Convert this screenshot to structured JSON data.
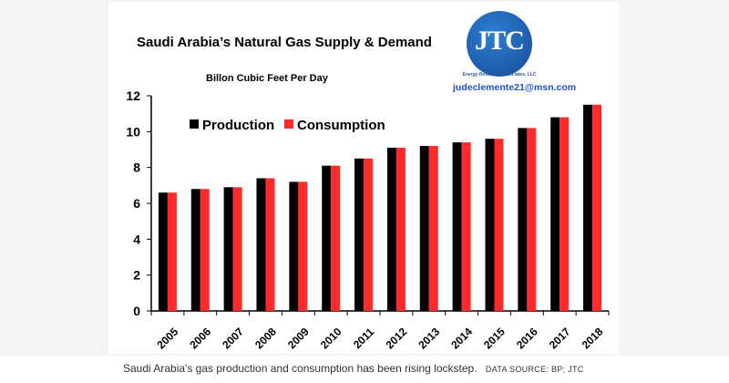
{
  "chart_data": {
    "type": "bar",
    "title": "Saudi Arabia’s Natural Gas Supply & Demand",
    "subtitle": "Billon Cubic Feet Per Day",
    "xlabel": "",
    "ylabel": "",
    "ylim": [
      0,
      12
    ],
    "yticks": [
      0,
      2,
      4,
      6,
      8,
      10,
      12
    ],
    "categories": [
      "2005",
      "2006",
      "2007",
      "2008",
      "2009",
      "2010",
      "2011",
      "2012",
      "2013",
      "2014",
      "2015",
      "2016",
      "2017",
      "2018"
    ],
    "series": [
      {
        "name": "Production",
        "color": "#000000",
        "values": [
          6.6,
          6.8,
          6.9,
          7.4,
          7.2,
          8.1,
          8.5,
          9.1,
          9.2,
          9.4,
          9.6,
          10.2,
          10.8,
          11.5
        ]
      },
      {
        "name": "Consumption",
        "color": "#ff2a2a",
        "values": [
          6.6,
          6.8,
          6.9,
          7.4,
          7.2,
          8.1,
          8.5,
          9.1,
          9.2,
          9.4,
          9.6,
          10.2,
          10.8,
          11.5
        ]
      }
    ],
    "legend_position": "top-left",
    "grid": false
  },
  "logo": {
    "text": "JTC",
    "subtext": "Energy Research Associates, LLC",
    "email": "judeclemente21@msn.com"
  },
  "caption": {
    "text": "Saudi Arabia's gas production and consumption has been rising lockstep.",
    "source": "DATA SOURCE: BP; JTC"
  }
}
